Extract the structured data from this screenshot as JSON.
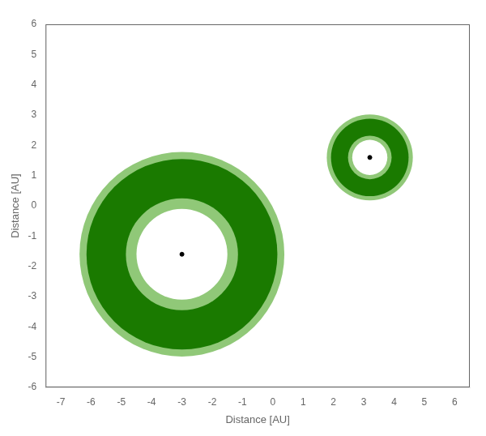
{
  "chart_data": {
    "type": "scatter",
    "xlabel": "Distance [AU]",
    "ylabel": "Distance [AU]",
    "xlim": [
      -7.5,
      6.5
    ],
    "ylim": [
      -6,
      6
    ],
    "xticks": [
      -7,
      -6,
      -5,
      -4,
      -3,
      -2,
      -1,
      0,
      1,
      2,
      3,
      4,
      5,
      6
    ],
    "yticks": [
      -6,
      -5,
      -4,
      -3,
      -2,
      -1,
      0,
      1,
      2,
      3,
      4,
      5,
      6
    ],
    "grid": false,
    "circles": [
      {
        "x": -3.0,
        "y": -1.6,
        "r": 3.38,
        "color": "#90c878"
      },
      {
        "x": -3.0,
        "y": -1.6,
        "r": 3.15,
        "color": "#1a7a00"
      },
      {
        "x": -3.0,
        "y": -1.6,
        "r": 1.85,
        "color": "#90c878"
      },
      {
        "x": -3.0,
        "y": -1.6,
        "r": 1.5,
        "color": "#ffffff"
      },
      {
        "x": 3.2,
        "y": 1.6,
        "r": 1.42,
        "color": "#90c878"
      },
      {
        "x": 3.2,
        "y": 1.6,
        "r": 1.28,
        "color": "#1a7a00"
      },
      {
        "x": 3.2,
        "y": 1.6,
        "r": 0.72,
        "color": "#90c878"
      },
      {
        "x": 3.2,
        "y": 1.6,
        "r": 0.58,
        "color": "#ffffff"
      }
    ],
    "series": [
      {
        "x": [
          -3.0,
          3.2
        ],
        "values": [
          -1.6,
          1.6
        ],
        "color": "#000000",
        "marker": "circle"
      }
    ]
  }
}
